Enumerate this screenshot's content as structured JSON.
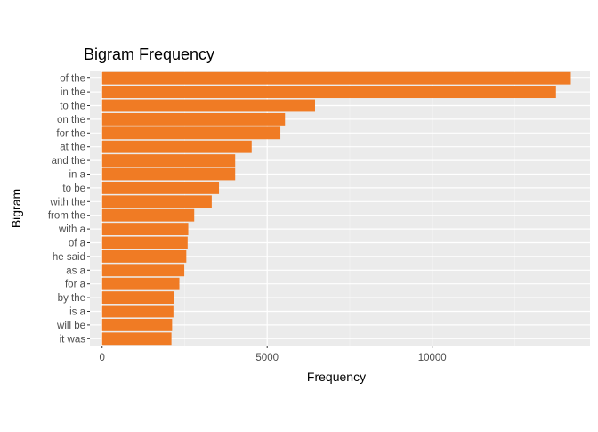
{
  "chart_data": {
    "type": "bar",
    "orientation": "horizontal",
    "title": "Bigram Frequency",
    "xlabel": "Frequency",
    "ylabel": "Bigram",
    "categories": [
      "of the",
      "in the",
      "to the",
      "on the",
      "for the",
      "at the",
      "and the",
      "in a",
      "to be",
      "with the",
      "from the",
      "with a",
      "of a",
      "he said",
      "as a",
      "for a",
      "by the",
      "is a",
      "will be",
      "it was"
    ],
    "values": [
      14200,
      13750,
      6450,
      5540,
      5400,
      4530,
      4030,
      4030,
      3540,
      3320,
      2790,
      2610,
      2590,
      2550,
      2490,
      2340,
      2170,
      2160,
      2120,
      2100
    ],
    "xlim": [
      -370,
      14780
    ],
    "xticks": [
      0,
      5000,
      10000
    ],
    "xtick_labels": [
      "0",
      "5000",
      "10000"
    ],
    "grid": true,
    "legend": "none",
    "colors": {
      "bar": "#F07B24",
      "panel_background": "#EBEBEB",
      "grid_major": "#FFFFFF",
      "grid_minor": "#F5F5F5",
      "tick_text": "#4D4D4D"
    }
  }
}
